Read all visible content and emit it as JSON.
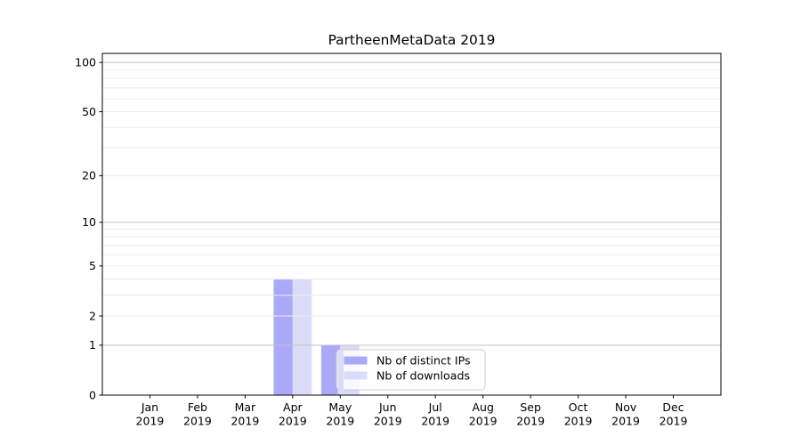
{
  "chart_data": {
    "type": "bar",
    "title": "PartheenMetaData 2019",
    "categories": [
      "Jan",
      "Feb",
      "Mar",
      "Apr",
      "May",
      "Jun",
      "Jul",
      "Aug",
      "Sep",
      "Oct",
      "Nov",
      "Dec"
    ],
    "category_sublabel": "2019",
    "series": [
      {
        "name": "Nb of distinct IPs",
        "color": "#a9a9f7",
        "values": [
          0,
          0,
          0,
          4,
          1,
          0,
          0,
          0,
          0,
          0,
          0,
          0
        ]
      },
      {
        "name": "Nb of downloads",
        "color": "#dcdcfa",
        "values": [
          0,
          0,
          0,
          4,
          1,
          0,
          0,
          0,
          0,
          0,
          0,
          0
        ]
      }
    ],
    "yscale": "log1p",
    "ylim": [
      0,
      113.5
    ],
    "yticks": [
      0,
      1,
      2,
      5,
      10,
      20,
      50,
      100
    ],
    "ytick_labels": [
      "0",
      "1",
      "2",
      "5",
      "10",
      "20",
      "50",
      "100"
    ],
    "grid": {
      "show": true,
      "major_values": [
        1,
        10,
        100
      ],
      "minor_values": [
        2,
        3,
        4,
        5,
        6,
        7,
        8,
        9,
        20,
        30,
        40,
        50,
        60,
        70,
        80,
        90
      ],
      "major_color": "#c2c2c2",
      "minor_color": "#ececec"
    },
    "legend": {
      "position": "lower center",
      "frame_color": "#cccccc",
      "frame_alpha": 0.8,
      "entries": [
        "Nb of distinct IPs",
        "Nb of downloads"
      ]
    },
    "axes": {
      "spine_color": "#000000",
      "tick_color": "#000000",
      "tick_label_color": "#000000"
    }
  }
}
